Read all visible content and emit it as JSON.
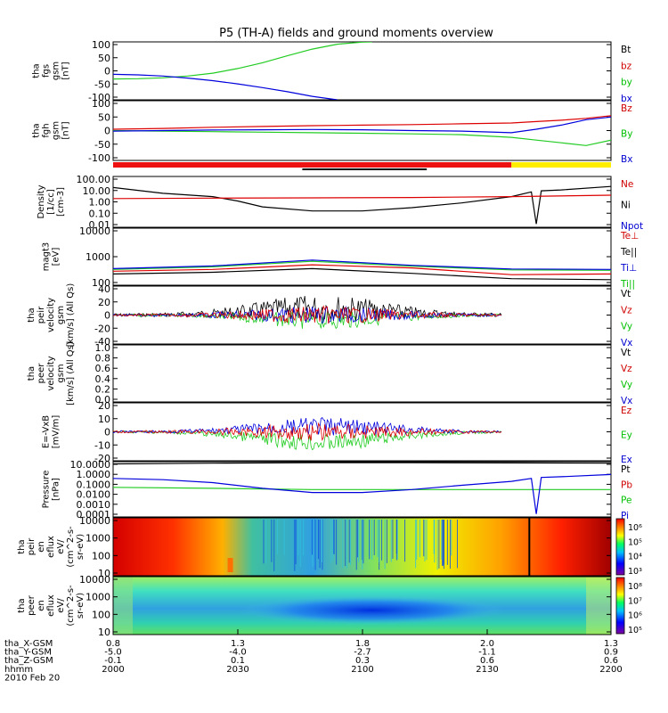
{
  "chart_data": {
    "type": "line",
    "title": "P5 (TH-A) fields and ground moments overview",
    "panels": [
      {
        "id": "fgs",
        "ylabel": [
          "tha",
          "fgs",
          "gsm",
          "[nT]"
        ],
        "yticks": [
          "100",
          "50",
          "0",
          "-50",
          "-100"
        ],
        "ylim": [
          -100,
          100
        ],
        "legend": [
          {
            "name": "Bt",
            "color": "#000000"
          },
          {
            "name": "bz",
            "color": "#d00000"
          },
          {
            "name": "by",
            "color": "#00c000"
          },
          {
            "name": "bx",
            "color": "#0000d0"
          }
        ],
        "series": [
          {
            "name": "by",
            "color": "#22cc22",
            "x": [
              0,
              5,
              10,
              15,
              20,
              25,
              30,
              35,
              40,
              45,
              50,
              52
            ],
            "y": [
              -28,
              -27,
              -24,
              -18,
              -8,
              8,
              28,
              52,
              75,
              92,
              99,
              100
            ]
          },
          {
            "name": "bx",
            "color": "#0000dd",
            "x": [
              0,
              5,
              10,
              15,
              20,
              25,
              30,
              35,
              40,
              45
            ],
            "y": [
              -12,
              -14,
              -18,
              -25,
              -34,
              -45,
              -58,
              -72,
              -88,
              -100
            ]
          }
        ]
      },
      {
        "id": "fgh",
        "ylabel": [
          "tha",
          "fgh",
          "gsm",
          "[nT]"
        ],
        "yticks": [
          "100",
          "50",
          "0",
          "-50",
          "-100"
        ],
        "ylim": [
          -110,
          110
        ],
        "legend": [
          {
            "name": "Bz",
            "color": "#d00000"
          },
          {
            "name": "By",
            "color": "#00c000"
          },
          {
            "name": "Bx",
            "color": "#0000d0"
          }
        ],
        "series": [
          {
            "name": "Bz",
            "color": "#dd0000",
            "x": [
              0,
              10,
              20,
              30,
              40,
              50,
              60,
              70,
              80,
              85,
              90,
              95,
              100
            ],
            "y": [
              5,
              8,
              12,
              15,
              18,
              20,
              22,
              25,
              28,
              33,
              38,
              45,
              55
            ]
          },
          {
            "name": "By",
            "color": "#22cc22",
            "x": [
              0,
              10,
              20,
              30,
              40,
              50,
              60,
              70,
              80,
              85,
              90,
              95,
              100
            ],
            "y": [
              0,
              -2,
              -4,
              -6,
              -8,
              -10,
              -12,
              -15,
              -25,
              -35,
              -45,
              -55,
              -35
            ]
          },
          {
            "name": "Bx",
            "color": "#0000dd",
            "x": [
              0,
              10,
              20,
              30,
              40,
              50,
              60,
              70,
              80,
              85,
              90,
              95,
              100
            ],
            "y": [
              -2,
              0,
              2,
              3,
              4,
              3,
              0,
              -2,
              -8,
              5,
              20,
              40,
              50
            ]
          }
        ]
      },
      {
        "id": "density",
        "ylabel": [
          "Density",
          "[1/cc]",
          "[cm-3]"
        ],
        "yticks": [
          "100.00",
          "10.00",
          "1.00",
          "0.10",
          "0.01"
        ],
        "log": true,
        "ylim": [
          0.005,
          200
        ],
        "legend": [
          {
            "name": "Ne",
            "color": "#d00000"
          },
          {
            "name": "Ni",
            "color": "#000000"
          },
          {
            "name": "Npot",
            "color": "#0000d0"
          }
        ],
        "series": [
          {
            "name": "Ni",
            "color": "#000000",
            "x": [
              0,
              10,
              20,
              25,
              30,
              40,
              50,
              60,
              70,
              80,
              84,
              85,
              86,
              90,
              100
            ],
            "y": [
              20,
              6,
              3,
              1.2,
              0.35,
              0.15,
              0.15,
              0.3,
              0.8,
              3,
              8,
              0.01,
              10,
              12,
              25
            ]
          },
          {
            "name": "Ne",
            "color": "#dd0000",
            "x": [
              0,
              20,
              40,
              60,
              80,
              100
            ],
            "y": [
              2,
              2.2,
              2.3,
              2.5,
              3,
              4
            ]
          }
        ]
      },
      {
        "id": "temp",
        "ylabel": [
          "magt3",
          "[eV]"
        ],
        "yticks": [
          "10000",
          "1000",
          "100"
        ],
        "log": true,
        "ylim": [
          60,
          12000
        ],
        "legend": [
          {
            "name": "Te⊥",
            "color": "#d00000"
          },
          {
            "name": "Te||",
            "color": "#000000"
          },
          {
            "name": "Ti⊥",
            "color": "#0000d0"
          },
          {
            "name": "Ti||",
            "color": "#00c000"
          }
        ],
        "series": [
          {
            "name": "Ti||",
            "color": "#22cc22",
            "x": [
              0,
              20,
              40,
              60,
              80,
              100
            ],
            "y": [
              260,
              330,
              550,
              350,
              250,
              240
            ]
          },
          {
            "name": "Ti⊥",
            "color": "#0000dd",
            "x": [
              0,
              20,
              40,
              60,
              80,
              100
            ],
            "y": [
              280,
              360,
              620,
              380,
              270,
              260
            ]
          },
          {
            "name": "Te⊥",
            "color": "#dd0000",
            "x": [
              0,
              20,
              40,
              60,
              80,
              100
            ],
            "y": [
              220,
              260,
              400,
              300,
              160,
              170
            ]
          },
          {
            "name": "Te||",
            "color": "#000000",
            "x": [
              0,
              20,
              40,
              60,
              80,
              100
            ],
            "y": [
              170,
              200,
              280,
              180,
              110,
              100
            ]
          }
        ]
      },
      {
        "id": "peir",
        "ylabel": [
          "tha",
          "peir",
          "velocity",
          "gsm",
          "[km/s] (All Qs)"
        ],
        "yticks": [
          "40",
          "20",
          "0",
          "-20",
          "-40"
        ],
        "ylim": [
          -40,
          40
        ],
        "legend": [
          {
            "name": "Vt",
            "color": "#000000"
          },
          {
            "name": "Vz",
            "color": "#d00000"
          },
          {
            "name": "Vy",
            "color": "#00c000"
          },
          {
            "name": "Vx",
            "color": "#0000d0"
          }
        ]
      },
      {
        "id": "peer",
        "ylabel": [
          "tha",
          "peer",
          "velocity",
          "gsm",
          "[km/s] (All Qs)"
        ],
        "yticks": [
          "1.0",
          "0.8",
          "0.6",
          "0.4",
          "0.2",
          "0.0"
        ],
        "ylim": [
          0,
          1
        ],
        "legend": [
          {
            "name": "Vt",
            "color": "#000000"
          },
          {
            "name": "Vz",
            "color": "#d00000"
          },
          {
            "name": "Vy",
            "color": "#00c000"
          },
          {
            "name": "Vx",
            "color": "#0000d0"
          }
        ]
      },
      {
        "id": "efield",
        "ylabel": [
          "E=-VxB",
          "[mV/m]"
        ],
        "yticks": [
          "20",
          "10",
          "0",
          "-10",
          "-20"
        ],
        "ylim": [
          -22,
          22
        ],
        "legend": [
          {
            "name": "Ez",
            "color": "#d00000"
          },
          {
            "name": "Ey",
            "color": "#00c000"
          },
          {
            "name": "Ex",
            "color": "#0000d0"
          }
        ]
      },
      {
        "id": "pressure",
        "ylabel": [
          "Pressure",
          "[nPa]"
        ],
        "yticks": [
          "10.0000",
          "1.0000",
          "0.1000",
          "0.0100",
          "0.0010",
          "0.0001"
        ],
        "log": true,
        "ylim": [
          5e-05,
          20
        ],
        "legend": [
          {
            "name": "Pt",
            "color": "#000000"
          },
          {
            "name": "Pb",
            "color": "#d00000"
          },
          {
            "name": "Pe",
            "color": "#00c000"
          },
          {
            "name": "Pi",
            "color": "#0000d0"
          }
        ],
        "series": [
          {
            "name": "Pt",
            "color": "#000000",
            "x": [
              0,
              20,
              40,
              60,
              80,
              100
            ],
            "y": [
              12,
              14,
              16,
              16,
              15,
              14
            ]
          },
          {
            "name": "Pe",
            "color": "#22cc22",
            "x": [
              0,
              20,
              40,
              60,
              80,
              100
            ],
            "y": [
              0.05,
              0.04,
              0.03,
              0.03,
              0.03,
              0.03
            ]
          },
          {
            "name": "Pi",
            "color": "#0000dd",
            "x": [
              0,
              10,
              20,
              30,
              40,
              50,
              60,
              70,
              80,
              84,
              85,
              86,
              90,
              100
            ],
            "y": [
              0.4,
              0.3,
              0.15,
              0.04,
              0.015,
              0.015,
              0.03,
              0.08,
              0.2,
              0.4,
              0.0001,
              0.5,
              0.6,
              1
            ]
          }
        ]
      },
      {
        "id": "peir_en",
        "ylabel": [
          "tha",
          "peir",
          "en",
          "eflux",
          "eV/",
          "(cm^2-s-",
          "sr-eV)"
        ],
        "yticks": [
          "10000",
          "1000",
          "100",
          "10"
        ],
        "spectrogram": true,
        "colorbar_ticks": [
          "10⁶",
          "10⁵",
          "10⁴",
          "10³"
        ]
      },
      {
        "id": "peer_en",
        "ylabel": [
          "tha",
          "peer",
          "en",
          "eflux",
          "eV/",
          "(cm^2-s-",
          "sr-eV)"
        ],
        "yticks": [
          "10000",
          "1000",
          "100",
          "10"
        ],
        "spectrogram": true,
        "colorbar_ticks": [
          "10⁸",
          "10⁷",
          "10⁶",
          "10⁵"
        ]
      }
    ],
    "xaxis": {
      "row_labels": [
        "tha_X-GSM",
        "tha_Y-GSM",
        "tha_Z-GSM",
        "hhmm",
        "2010 Feb 20"
      ],
      "columns": [
        [
          "0.8",
          "-5.0",
          "-0.1",
          "2000"
        ],
        [
          "1.3",
          "-4.0",
          "0.1",
          "2030"
        ],
        [
          "1.8",
          "-2.7",
          "0.3",
          "2100"
        ],
        [
          "2.0",
          "-1.1",
          "0.6",
          "2130"
        ],
        [
          "1.3",
          "0.9",
          "0.6",
          "2200"
        ]
      ]
    },
    "mode_bar": [
      {
        "color": "#ee1111",
        "from": 0,
        "to": 80
      },
      {
        "color": "#ffee00",
        "from": 80,
        "to": 100
      }
    ]
  }
}
